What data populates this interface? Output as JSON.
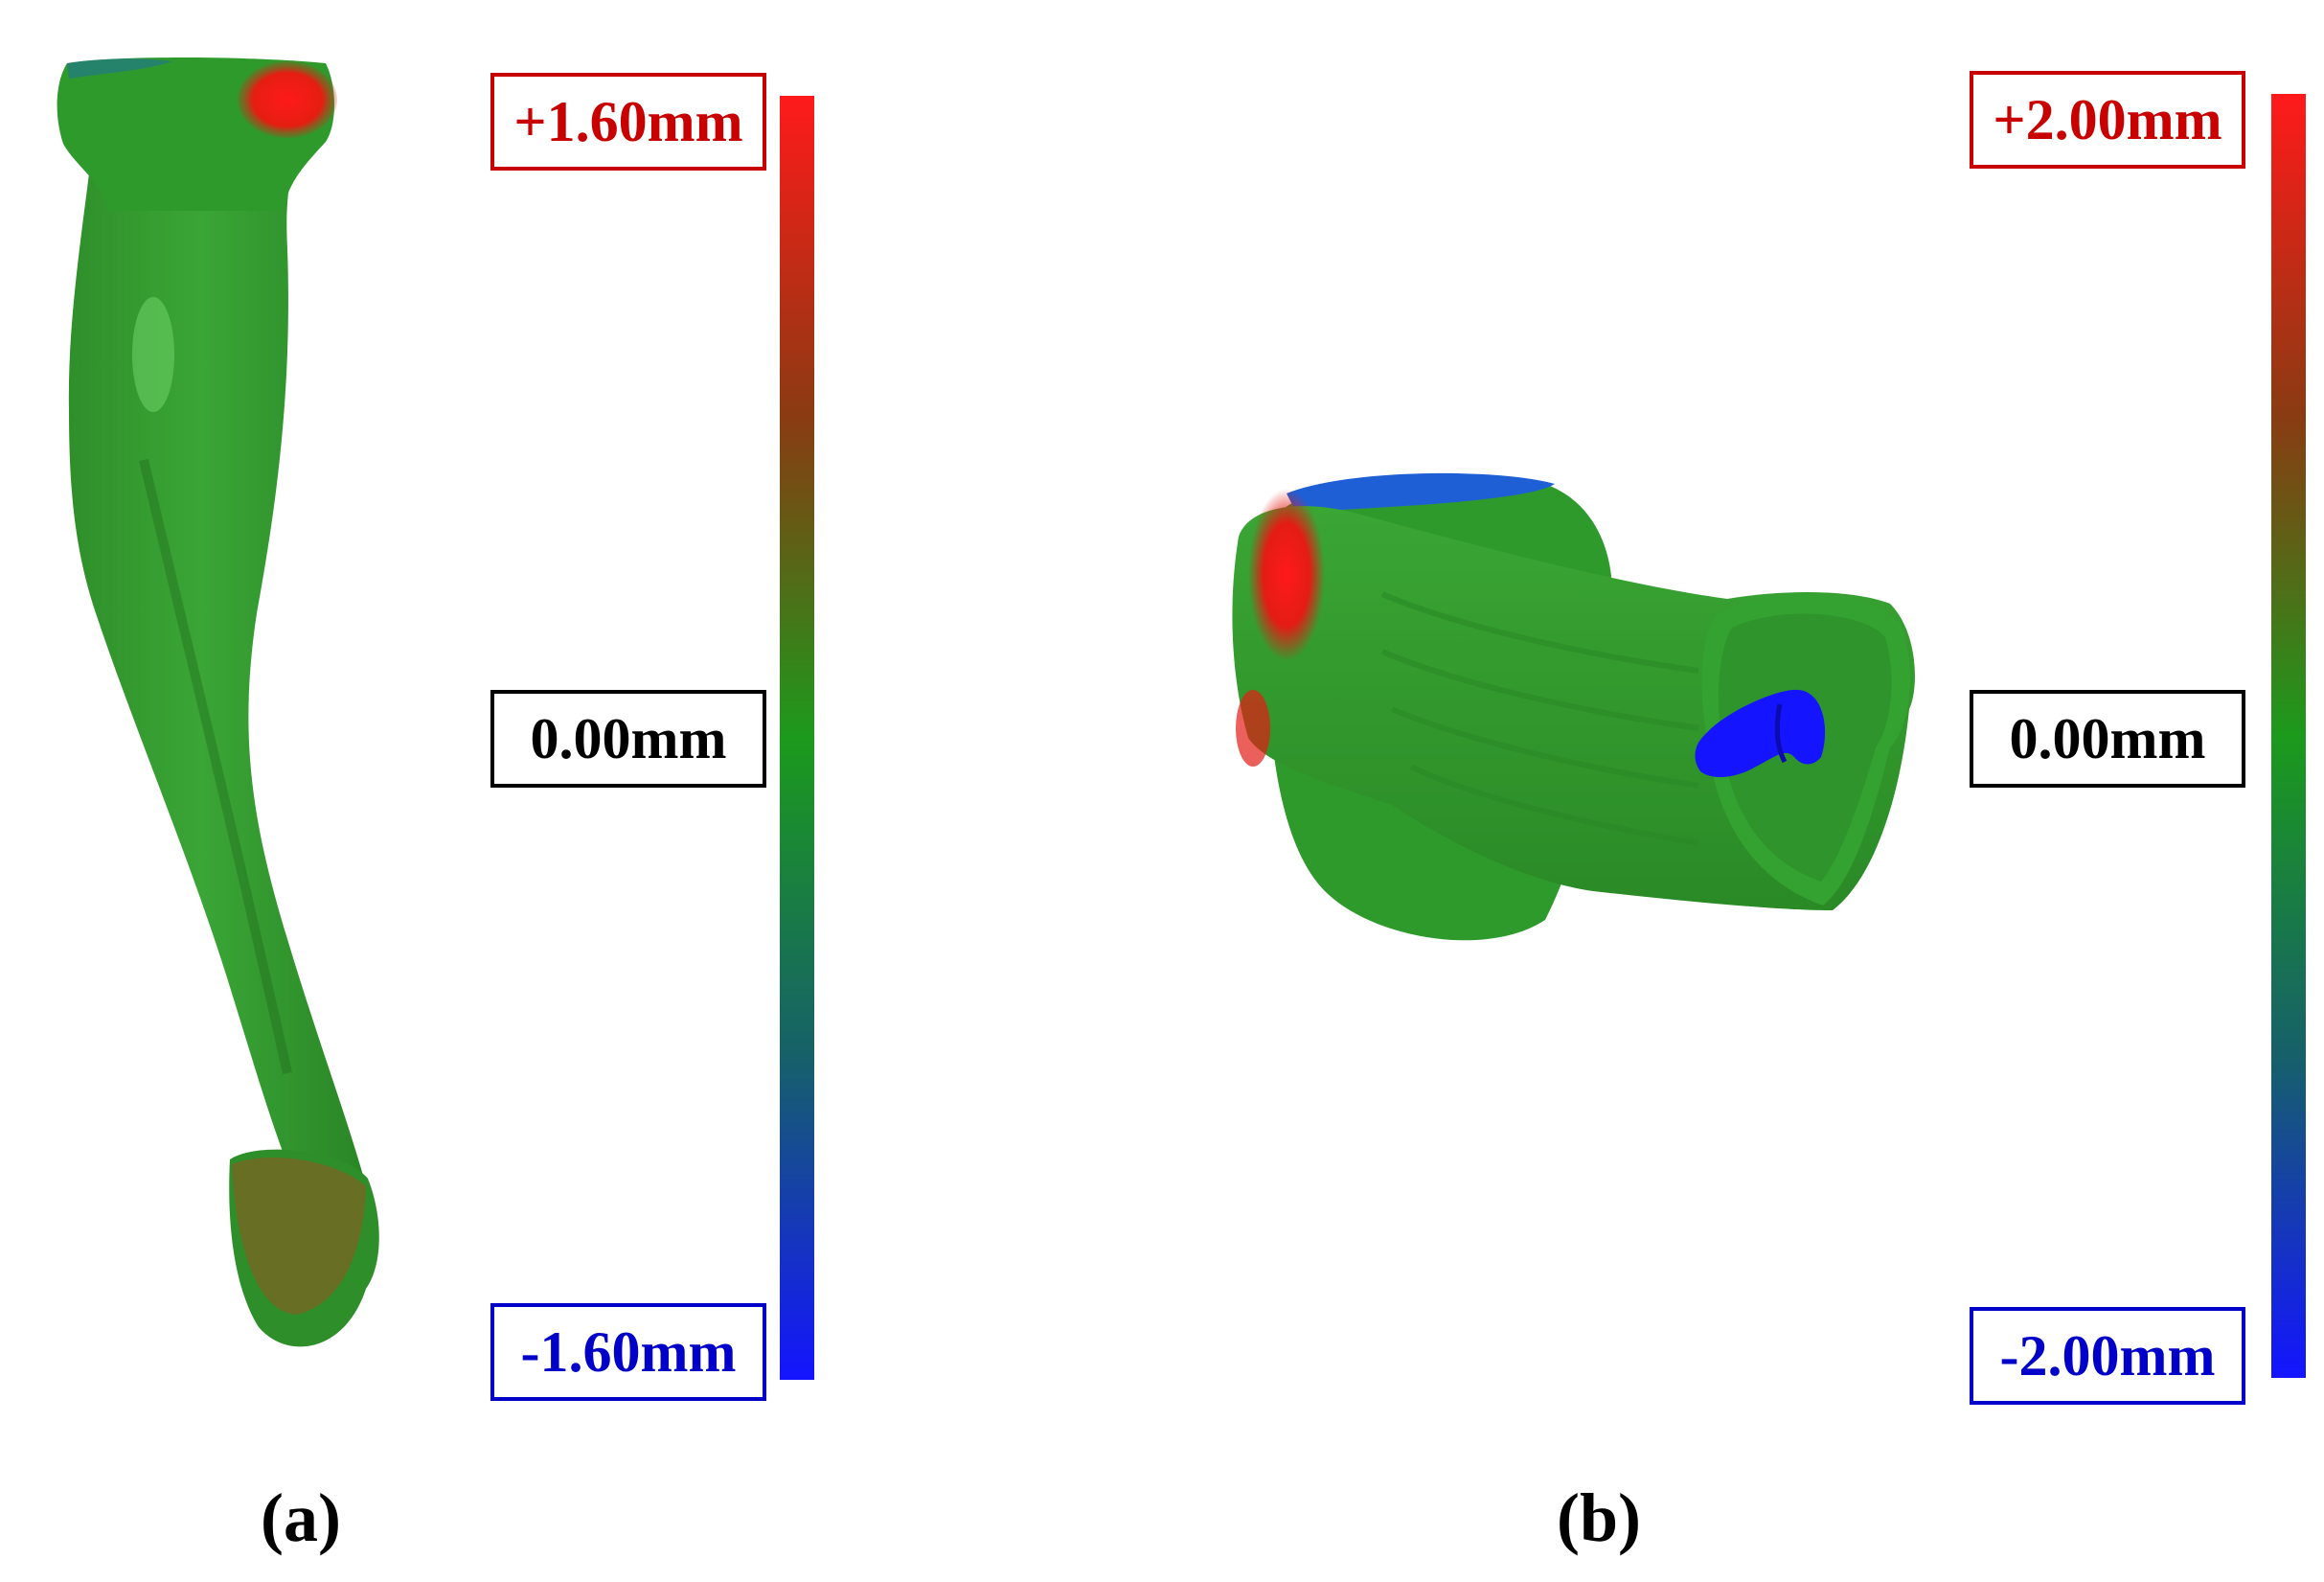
{
  "colors": {
    "positive": "#ff1a1a",
    "zero": "#1c9a1c",
    "negative": "#1414ff",
    "frame_neutral": "#000000",
    "frame_positive": "#c80000",
    "frame_negative": "#0000c8"
  },
  "panels": [
    {
      "caption": "(a)",
      "scale": {
        "max_label": "+1.60mm",
        "zero_label": "0.00mm",
        "min_label": "-1.60mm"
      },
      "model": "deviation-map-long-bone"
    },
    {
      "caption": "(b)",
      "scale": {
        "max_label": "+2.00mm",
        "zero_label": "0.00mm",
        "min_label": "-2.00mm"
      },
      "model": "deviation-map-bone-segment"
    }
  ]
}
